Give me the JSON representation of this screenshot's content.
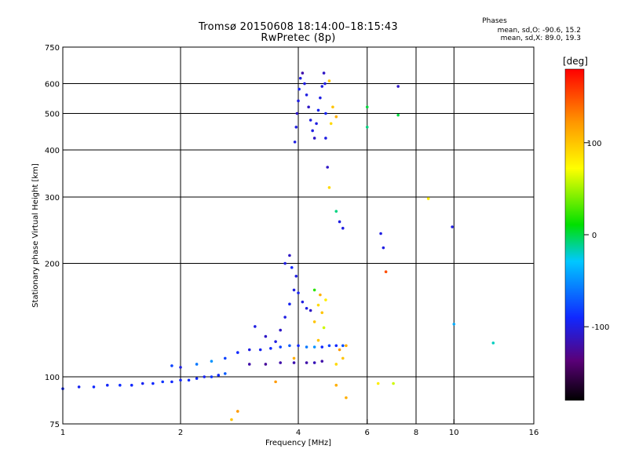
{
  "chart_data": {
    "type": "scatter",
    "title": "Tromsø 20150608 18:14:00–18:15:43",
    "subtitle": "RwPretec (8p)",
    "xlabel": "Frequency [MHz]",
    "ylabel": "Stationary phase Virtual Height [km]",
    "x_scale": "log",
    "y_scale": "log",
    "xlim": [
      1,
      16
    ],
    "ylim": [
      75,
      750
    ],
    "x_ticks": [
      1,
      2,
      4,
      6,
      8,
      10,
      16
    ],
    "y_ticks": [
      75,
      100,
      200,
      300,
      400,
      500,
      600,
      750
    ],
    "x_grid": [
      2,
      4,
      6,
      8,
      10
    ],
    "y_grid": [
      100,
      200,
      300,
      400,
      500,
      600
    ],
    "grid": true,
    "legend": {
      "head": "Phases",
      "o_mode": "mean, sd,O: -90.6, 15.2",
      "x_mode": "mean, sd,X: 89.0, 19.3"
    },
    "colorbar": {
      "label": "[deg]",
      "range": [
        -180,
        180
      ],
      "ticks": [
        100,
        0,
        -100
      ],
      "tick_labels": [
        "100",
        "0",
        "-100"
      ]
    },
    "series": [
      {
        "name": "",
        "points": [
          [
            1.0,
            93,
            -90
          ],
          [
            1.1,
            94,
            -95
          ],
          [
            1.2,
            94,
            -90
          ],
          [
            1.3,
            95,
            -92
          ],
          [
            1.4,
            95,
            -88
          ],
          [
            1.5,
            95,
            -90
          ],
          [
            1.6,
            96,
            -95
          ],
          [
            1.7,
            96,
            -90
          ],
          [
            1.8,
            97,
            -85
          ],
          [
            1.9,
            97,
            -90
          ],
          [
            2.0,
            98,
            -92
          ],
          [
            2.1,
            98,
            -88
          ],
          [
            2.2,
            99,
            -90
          ],
          [
            2.3,
            100,
            -95
          ],
          [
            2.4,
            100,
            -85
          ],
          [
            2.5,
            101,
            -90
          ],
          [
            2.6,
            102,
            -70
          ],
          [
            1.9,
            107,
            -80
          ],
          [
            2.0,
            106,
            -100
          ],
          [
            2.2,
            108,
            -60
          ],
          [
            2.4,
            110,
            -50
          ],
          [
            2.6,
            112,
            -80
          ],
          [
            2.8,
            116,
            -90
          ],
          [
            3.0,
            118,
            -100
          ],
          [
            3.2,
            118,
            -95
          ],
          [
            3.4,
            119,
            -90
          ],
          [
            3.6,
            120,
            -80
          ],
          [
            3.8,
            121,
            -70
          ],
          [
            4.0,
            121,
            -90
          ],
          [
            4.2,
            120,
            -60
          ],
          [
            4.4,
            120,
            -50
          ],
          [
            4.6,
            120,
            -90
          ],
          [
            4.8,
            121,
            -80
          ],
          [
            5.0,
            121,
            -90
          ],
          [
            5.2,
            121,
            -75
          ],
          [
            3.0,
            108,
            -120
          ],
          [
            3.3,
            108,
            -125
          ],
          [
            3.6,
            109,
            -120
          ],
          [
            3.9,
            109,
            -118
          ],
          [
            4.2,
            109,
            -120
          ],
          [
            4.4,
            109,
            -115
          ],
          [
            4.6,
            110,
            -120
          ],
          [
            3.1,
            136,
            -100
          ],
          [
            3.3,
            128,
            -110
          ],
          [
            3.5,
            124,
            -100
          ],
          [
            3.6,
            133,
            -110
          ],
          [
            3.7,
            144,
            -100
          ],
          [
            3.8,
            156,
            -95
          ],
          [
            3.9,
            170,
            -100
          ],
          [
            3.95,
            185,
            -100
          ],
          [
            3.7,
            200,
            -100
          ],
          [
            3.8,
            210,
            -110
          ],
          [
            3.85,
            195,
            -90
          ],
          [
            4.0,
            167,
            -95
          ],
          [
            4.1,
            158,
            -100
          ],
          [
            4.2,
            152,
            -100
          ],
          [
            4.3,
            150,
            -110
          ],
          [
            4.4,
            170,
            20
          ],
          [
            4.5,
            155,
            90
          ],
          [
            4.6,
            148,
            100
          ],
          [
            4.55,
            165,
            110
          ],
          [
            4.7,
            160,
            80
          ],
          [
            4.4,
            140,
            100
          ],
          [
            4.65,
            135,
            60
          ],
          [
            4.5,
            125,
            100
          ],
          [
            5.1,
            118,
            120
          ],
          [
            5.2,
            112,
            100
          ],
          [
            5.3,
            121,
            110
          ],
          [
            5.0,
            108,
            90
          ],
          [
            3.9,
            112,
            110
          ],
          [
            3.92,
            420,
            -100
          ],
          [
            3.95,
            460,
            -100
          ],
          [
            3.97,
            500,
            -110
          ],
          [
            4.0,
            540,
            -100
          ],
          [
            4.02,
            580,
            -95
          ],
          [
            4.05,
            620,
            -100
          ],
          [
            4.1,
            640,
            -120
          ],
          [
            4.15,
            600,
            -100
          ],
          [
            4.2,
            560,
            -100
          ],
          [
            4.25,
            520,
            -110
          ],
          [
            4.3,
            480,
            -100
          ],
          [
            4.35,
            450,
            -100
          ],
          [
            4.4,
            430,
            -110
          ],
          [
            4.45,
            470,
            -100
          ],
          [
            4.5,
            510,
            -95
          ],
          [
            4.55,
            550,
            -100
          ],
          [
            4.6,
            590,
            -100
          ],
          [
            4.65,
            640,
            -110
          ],
          [
            4.68,
            600,
            -100
          ],
          [
            4.7,
            500,
            -95
          ],
          [
            4.7,
            430,
            -100
          ],
          [
            4.8,
            610,
            100
          ],
          [
            4.9,
            520,
            100
          ],
          [
            4.85,
            470,
            90
          ],
          [
            5.0,
            490,
            110
          ],
          [
            4.75,
            360,
            -110
          ],
          [
            4.8,
            318,
            90
          ],
          [
            5.0,
            275,
            -10
          ],
          [
            5.1,
            258,
            -100
          ],
          [
            5.2,
            248,
            -100
          ],
          [
            6.0,
            520,
            0
          ],
          [
            6.0,
            460,
            -10
          ],
          [
            6.5,
            240,
            -100
          ],
          [
            6.6,
            220,
            -100
          ],
          [
            6.7,
            190,
            150
          ],
          [
            7.2,
            590,
            -110
          ],
          [
            7.2,
            495,
            0
          ],
          [
            8.6,
            297,
            80
          ],
          [
            9.9,
            250,
            -100
          ],
          [
            10.0,
            138,
            -40
          ],
          [
            12.6,
            123,
            -20
          ],
          [
            6.4,
            96,
            80
          ],
          [
            7.0,
            96,
            60
          ],
          [
            5.0,
            95,
            110
          ],
          [
            2.8,
            81,
            120
          ],
          [
            2.7,
            77,
            100
          ],
          [
            3.5,
            97,
            120
          ],
          [
            5.3,
            88,
            110
          ]
        ]
      }
    ]
  }
}
